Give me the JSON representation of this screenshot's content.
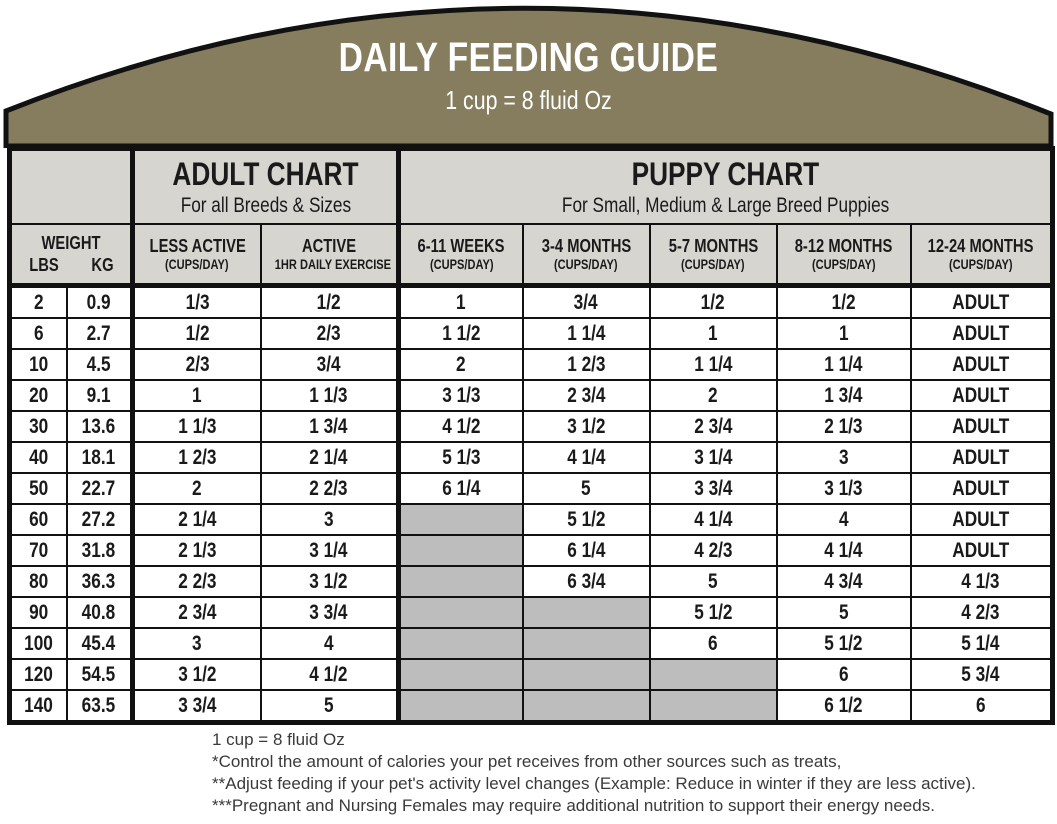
{
  "banner": {
    "title": "DAILY FEEDING GUIDE",
    "subtitle": "1 cup = 8 fluid Oz"
  },
  "adult_chart": {
    "title": "ADULT CHART",
    "subtitle": "For all Breeds & Sizes"
  },
  "puppy_chart": {
    "title": "PUPPY CHART",
    "subtitle": "For Small, Medium & Large Breed Puppies"
  },
  "table": {
    "weight_header": {
      "label": "WEIGHT",
      "lbs": "LBS",
      "kg": "KG"
    },
    "columns": [
      {
        "label": "LESS ACTIVE",
        "sub": "(CUPS/DAY)"
      },
      {
        "label": "ACTIVE",
        "sub": "1HR DAILY EXERCISE"
      },
      {
        "label": "6-11 WEEKS",
        "sub": "(CUPS/DAY)"
      },
      {
        "label": "3-4 MONTHS",
        "sub": "(CUPS/DAY)"
      },
      {
        "label": "5-7 MONTHS",
        "sub": "(CUPS/DAY)"
      },
      {
        "label": "8-12 MONTHS",
        "sub": "(CUPS/DAY)"
      },
      {
        "label": "12-24 MONTHS",
        "sub": "(CUPS/DAY)"
      }
    ]
  },
  "chart_data": {
    "type": "table",
    "title": "DAILY FEEDING GUIDE",
    "subtitle": "1 cup = 8 fluid Oz",
    "groups": [
      "WEIGHT",
      "ADULT CHART — For all Breeds & Sizes",
      "PUPPY CHART — For Small, Medium & Large Breed Puppies"
    ],
    "columns": [
      "LBS",
      "KG",
      "LESS ACTIVE (CUPS/DAY)",
      "ACTIVE 1HR DAILY EXERCISE",
      "6-11 WEEKS (CUPS/DAY)",
      "3-4 MONTHS (CUPS/DAY)",
      "5-7 MONTHS (CUPS/DAY)",
      "8-12 MONTHS (CUPS/DAY)",
      "12-24 MONTHS (CUPS/DAY)"
    ],
    "na_meaning": "gray cell = not applicable",
    "rows": [
      [
        "2",
        "0.9",
        "1/3",
        "1/2",
        "1",
        "3/4",
        "1/2",
        "1/2",
        "ADULT"
      ],
      [
        "6",
        "2.7",
        "1/2",
        "2/3",
        "1 1/2",
        "1 1/4",
        "1",
        "1",
        "ADULT"
      ],
      [
        "10",
        "4.5",
        "2/3",
        "3/4",
        "2",
        "1 2/3",
        "1 1/4",
        "1 1/4",
        "ADULT"
      ],
      [
        "20",
        "9.1",
        "1",
        "1 1/3",
        "3 1/3",
        "2 3/4",
        "2",
        "1 3/4",
        "ADULT"
      ],
      [
        "30",
        "13.6",
        "1 1/3",
        "1 3/4",
        "4 1/2",
        "3 1/2",
        "2 3/4",
        "2 1/3",
        "ADULT"
      ],
      [
        "40",
        "18.1",
        "1 2/3",
        "2 1/4",
        "5 1/3",
        "4 1/4",
        "3 1/4",
        "3",
        "ADULT"
      ],
      [
        "50",
        "22.7",
        "2",
        "2 2/3",
        "6 1/4",
        "5",
        "3 3/4",
        "3 1/3",
        "ADULT"
      ],
      [
        "60",
        "27.2",
        "2 1/4",
        "3",
        null,
        "5 1/2",
        "4 1/4",
        "4",
        "ADULT"
      ],
      [
        "70",
        "31.8",
        "2 1/3",
        "3 1/4",
        null,
        "6 1/4",
        "4 2/3",
        "4 1/4",
        "ADULT"
      ],
      [
        "80",
        "36.3",
        "2 2/3",
        "3 1/2",
        null,
        "6 3/4",
        "5",
        "4 3/4",
        "4 1/3"
      ],
      [
        "90",
        "40.8",
        "2 3/4",
        "3 3/4",
        null,
        null,
        "5 1/2",
        "5",
        "4 2/3"
      ],
      [
        "100",
        "45.4",
        "3",
        "4",
        null,
        null,
        "6",
        "5 1/2",
        "5 1/4"
      ],
      [
        "120",
        "54.5",
        "3 1/2",
        "4 1/2",
        null,
        null,
        null,
        "6",
        "5 3/4"
      ],
      [
        "140",
        "63.5",
        "3 3/4",
        "5",
        null,
        null,
        null,
        "6 1/2",
        "6"
      ]
    ]
  },
  "footnotes": [
    "1 cup = 8 fluid Oz",
    "*Control the amount of calories your pet receives from other sources such as treats,",
    "**Adjust feeding if your pet's activity level changes (Example: Reduce in winter if they are less active).",
    "***Pregnant and Nursing Females may require additional nutrition to support their energy needs."
  ],
  "colors": {
    "banner_olive": "#867C5E",
    "header_gray": "#D7D5D0",
    "na_gray": "#BDBDBD",
    "border_black": "#111111",
    "banner_text": "#FFFFFF"
  }
}
